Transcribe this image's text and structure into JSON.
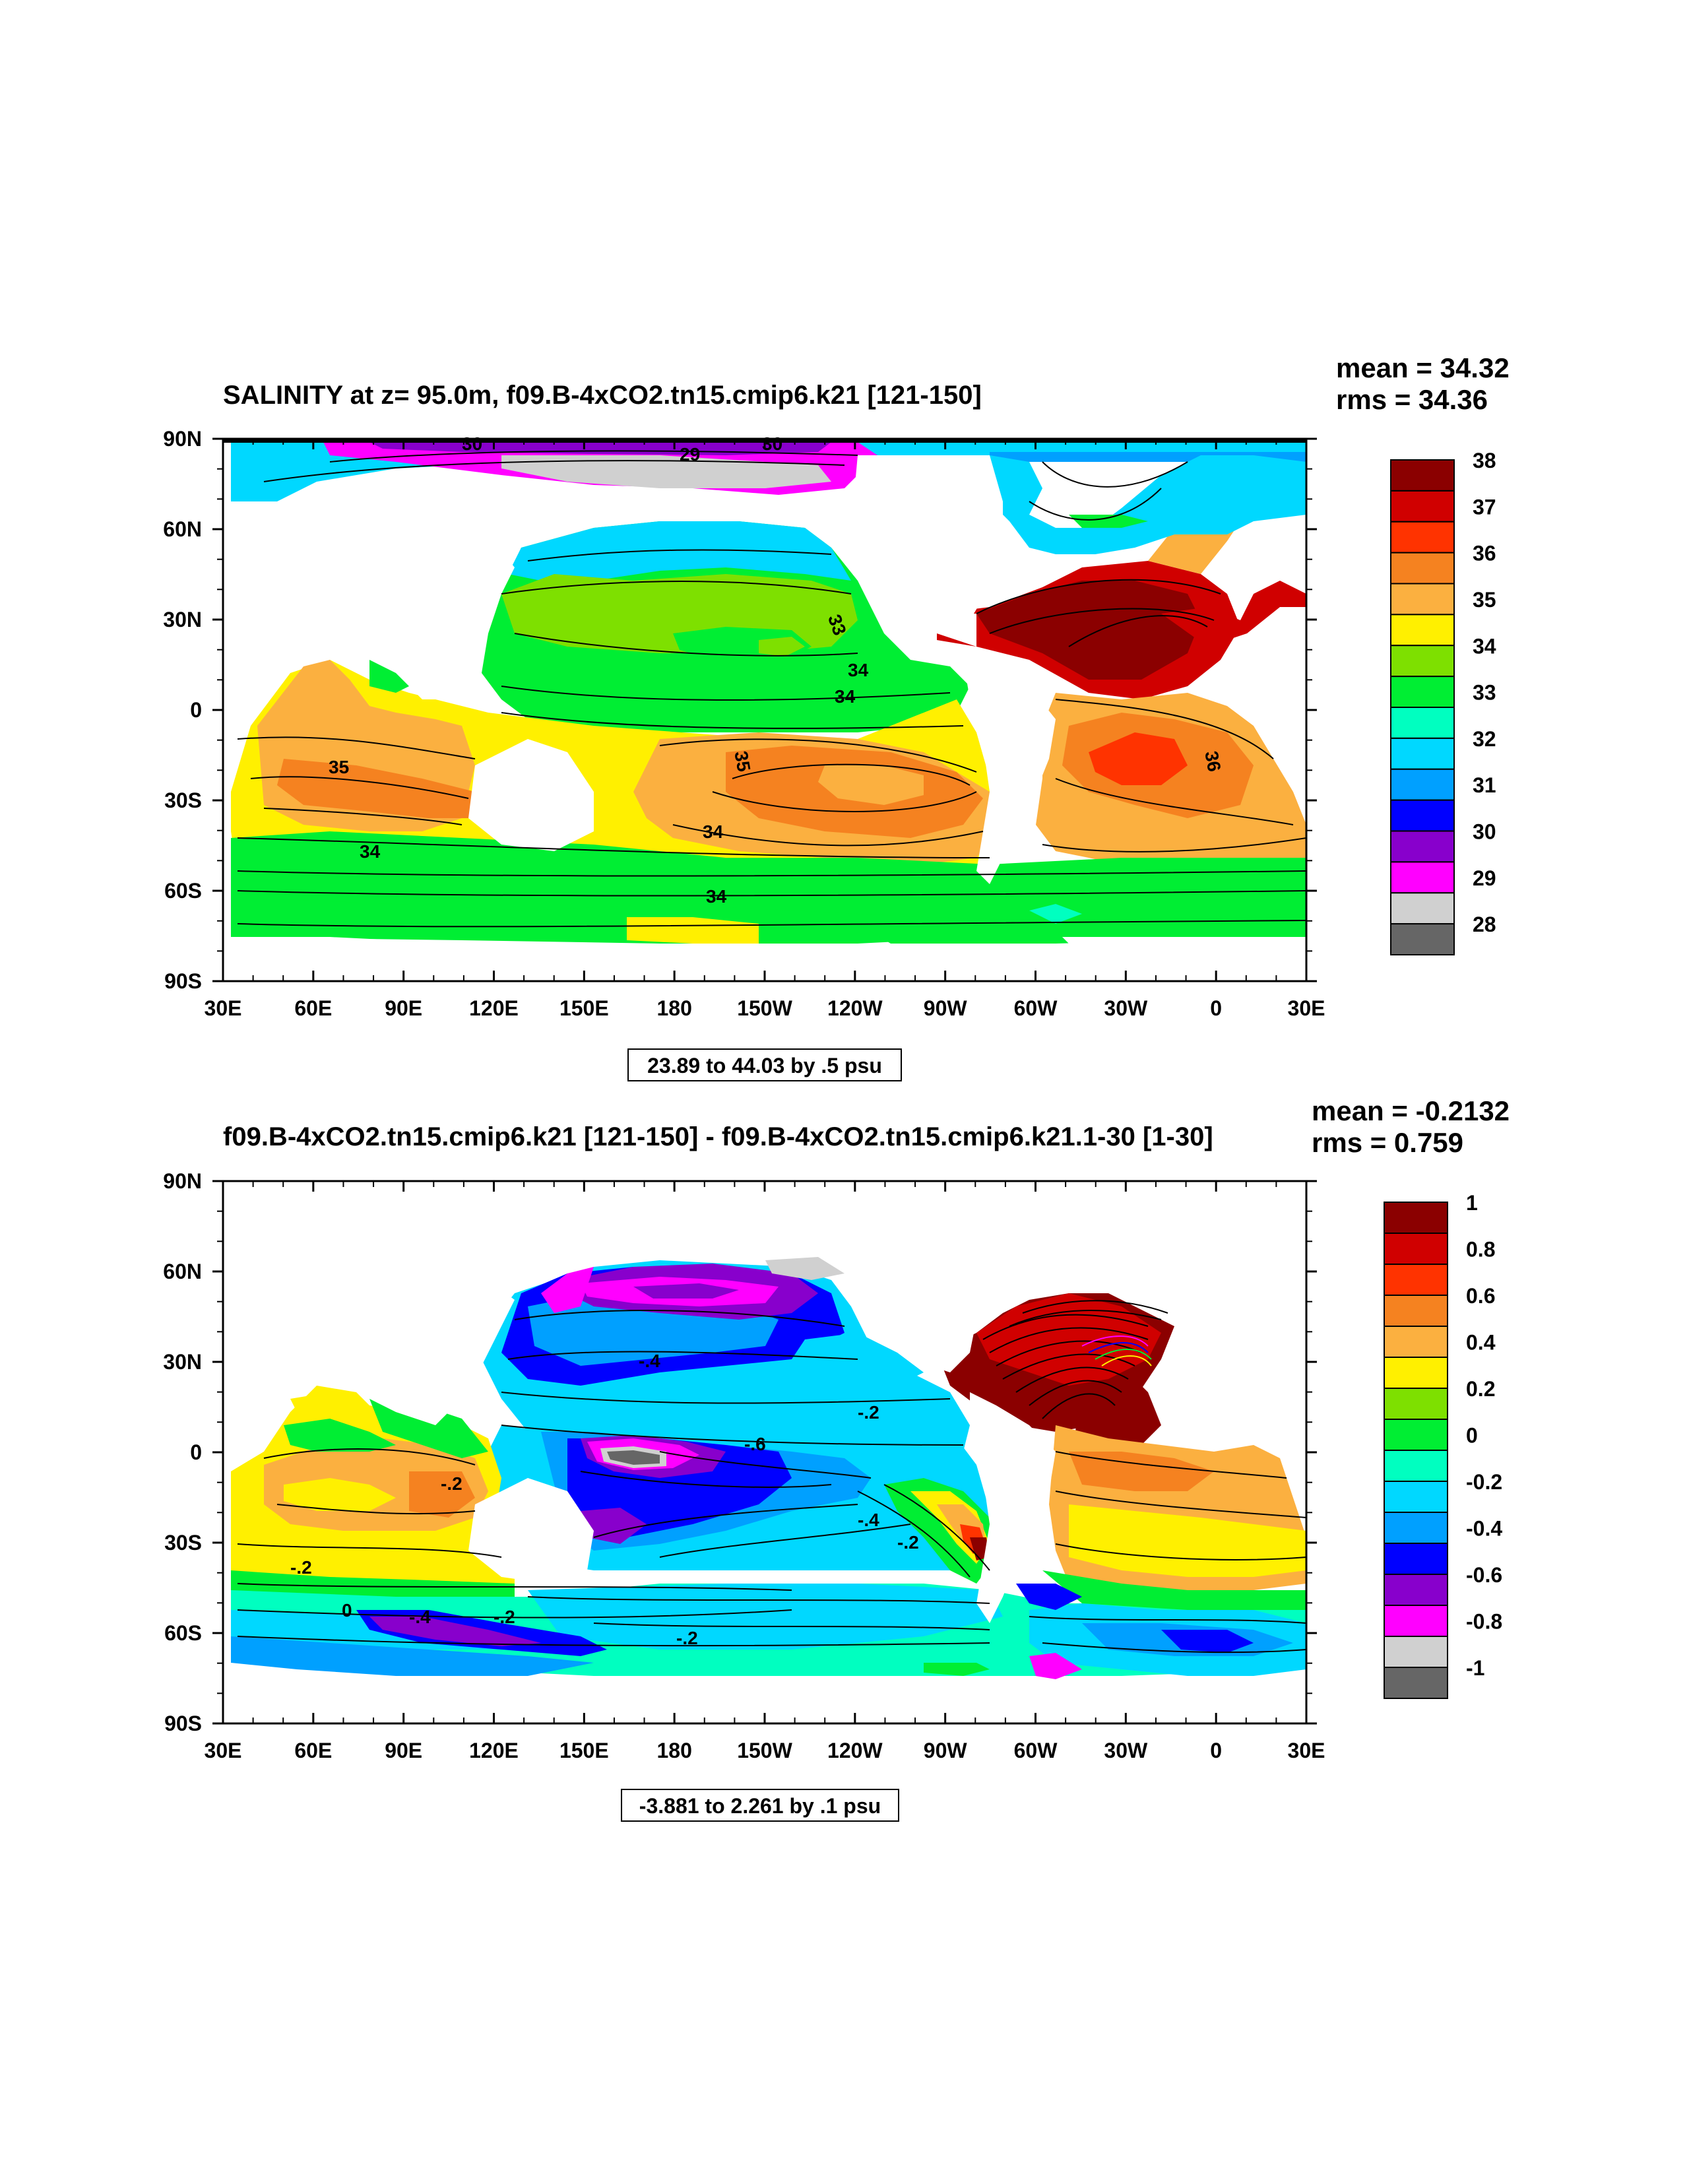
{
  "chart_data": [
    {
      "type": "heatmap",
      "title": "SALINITY at z=  95.0m, f09.B-4xCO2.tn15.cmip6.k21 [121-150]",
      "stats": {
        "mean": "mean = 34.32",
        "rms": "rms = 34.36"
      },
      "x_ticks": [
        "30E",
        "60E",
        "90E",
        "120E",
        "150E",
        "180",
        "150W",
        "120W",
        "90W",
        "60W",
        "30W",
        "0",
        "30E"
      ],
      "y_ticks": [
        "90N",
        "60N",
        "30N",
        "0",
        "30S",
        "60S",
        "90S"
      ],
      "xlim": [
        30,
        390
      ],
      "ylim": [
        -90,
        90
      ],
      "colorbar": {
        "levels": [
          "38",
          "37",
          "36",
          "35",
          "34",
          "33",
          "32",
          "31",
          "30",
          "29",
          "28"
        ],
        "colors": [
          "#8b0000",
          "#d00000",
          "#ff3300",
          "#f58220",
          "#fbb040",
          "#fff000",
          "#7ee000",
          "#00ee33",
          "#00ffc0",
          "#00d8ff",
          "#00a0ff",
          "#0000ff",
          "#8800cc",
          "#ff00ff",
          "#d0d0d0",
          "#666666"
        ]
      },
      "info": "23.89 to 44.03 by .5 psu",
      "contour_labels": [
        "30",
        "29",
        "30",
        "34",
        "34",
        "35",
        "35",
        "34",
        "36",
        "34",
        "34",
        "33"
      ]
    },
    {
      "type": "heatmap",
      "title": "f09.B-4xCO2.tn15.cmip6.k21 [121-150] - f09.B-4xCO2.tn15.cmip6.k21.1-30 [1-30]",
      "stats": {
        "mean": "mean = -0.2132",
        "rms": "rms = 0.759"
      },
      "x_ticks": [
        "30E",
        "60E",
        "90E",
        "120E",
        "150E",
        "180",
        "150W",
        "120W",
        "90W",
        "60W",
        "30W",
        "0",
        "30E"
      ],
      "y_ticks": [
        "90N",
        "60N",
        "30N",
        "0",
        "30S",
        "60S",
        "90S"
      ],
      "xlim": [
        30,
        390
      ],
      "ylim": [
        -90,
        90
      ],
      "colorbar": {
        "levels": [
          "1",
          "0.8",
          "0.6",
          "0.4",
          "0.2",
          "0",
          "-0.2",
          "-0.4",
          "-0.6",
          "-0.8",
          "-1"
        ],
        "colors": [
          "#8b0000",
          "#d00000",
          "#ff3300",
          "#f58220",
          "#fbb040",
          "#fff000",
          "#7ee000",
          "#00ee33",
          "#00ffc0",
          "#00d8ff",
          "#00a0ff",
          "#0000ff",
          "#8800cc",
          "#ff00ff",
          "#d0d0d0",
          "#666666"
        ]
      },
      "info": "-3.881 to 2.261 by .1 psu",
      "contour_labels": [
        "-.4",
        "-.2",
        "-.6",
        "-.2",
        "-.4",
        "-.2",
        "-.2",
        "-.4",
        "-.2",
        "-.2",
        "0"
      ]
    }
  ]
}
